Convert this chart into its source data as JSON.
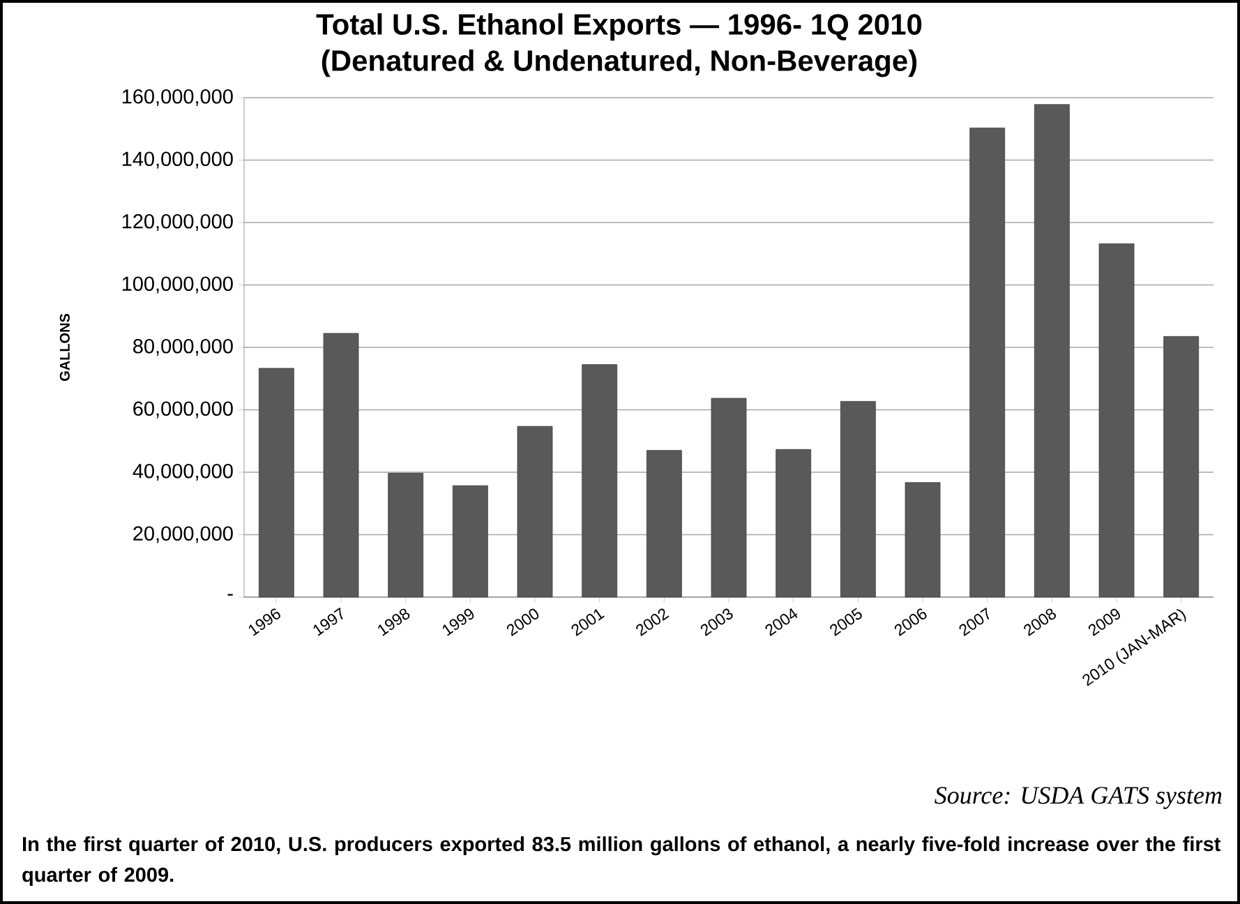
{
  "chart_data": {
    "type": "bar",
    "title": "Total U.S. Ethanol Exports — 1996- 1Q 2010",
    "subtitle": "(Denatured & Undenatured, Non-Beverage)",
    "ylabel": "GALLONS",
    "categories": [
      "1996",
      "1997",
      "1998",
      "1999",
      "2000",
      "2001",
      "2002",
      "2003",
      "2004",
      "2005",
      "2006",
      "2007",
      "2008",
      "2009",
      "2010 (JAN-MAR)"
    ],
    "values": [
      73300000,
      84500000,
      39700000,
      35700000,
      54700000,
      74500000,
      47000000,
      63700000,
      47300000,
      62700000,
      36700000,
      150300000,
      157800000,
      113200000,
      83500000
    ],
    "color": "#595959",
    "ylim": [
      0,
      160000000
    ],
    "yticks": [
      {
        "value": 0,
        "label": "-"
      },
      {
        "value": 20000000,
        "label": "20,000,000"
      },
      {
        "value": 40000000,
        "label": "40,000,000"
      },
      {
        "value": 60000000,
        "label": "60,000,000"
      },
      {
        "value": 80000000,
        "label": "80,000,000"
      },
      {
        "value": 100000000,
        "label": "100,000,000"
      },
      {
        "value": 120000000,
        "label": "120,000,000"
      },
      {
        "value": 140000000,
        "label": "140,000,000"
      },
      {
        "value": 160000000,
        "label": "160,000,000"
      }
    ],
    "grid": "y",
    "annotations": [
      "Source:  USDA GATS system",
      "In the first quarter of 2010, U.S. producers exported 83.5 million gallons of ethanol, a nearly five-fold increase over the first quarter of 2009."
    ]
  }
}
